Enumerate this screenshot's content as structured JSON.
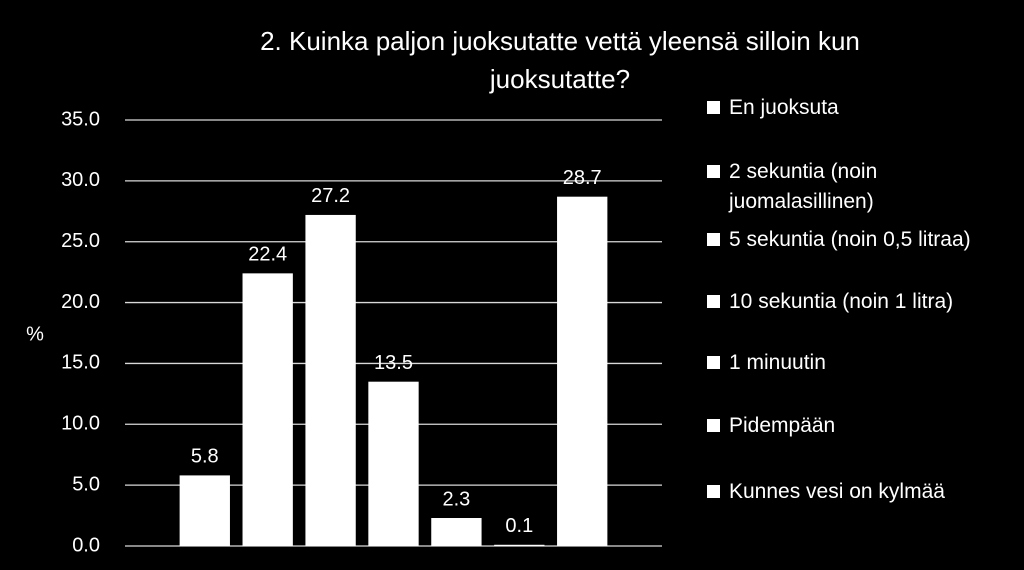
{
  "chart_data": {
    "type": "bar",
    "title": "2. Kuinka paljon juoksutatte vettä yleensä silloin kun juoksutatte?",
    "y_label": "%",
    "categories": [
      null
    ],
    "series": [
      {
        "name": "En juoksuta",
        "color": "#ffffff",
        "values": [
          5.8
        ]
      },
      {
        "name": "2 sekuntia (noin juomalasillinen)",
        "color": "#ffffff",
        "values": [
          22.4
        ]
      },
      {
        "name": "5 sekuntia (noin 0,5 litraa)",
        "color": "#ffffff",
        "values": [
          27.2
        ]
      },
      {
        "name": "10 sekuntia (noin 1 litra)",
        "color": "#ffffff",
        "values": [
          13.5
        ]
      },
      {
        "name": "1 minuutin",
        "color": "#ffffff",
        "values": [
          2.3
        ]
      },
      {
        "name": "Pidempään",
        "color": "#ffffff",
        "values": [
          0.1
        ]
      },
      {
        "name": "Kunnes vesi on kylmää",
        "color": "#ffffff",
        "values": [
          28.7
        ]
      }
    ],
    "ylim": [
      0,
      35
    ],
    "yticks": [
      {
        "value": 0,
        "label": "0.0"
      },
      {
        "value": 5,
        "label": "5.0"
      },
      {
        "value": 10,
        "label": "10.0"
      },
      {
        "value": 15,
        "label": "15.0"
      },
      {
        "value": 20,
        "label": "20.0"
      },
      {
        "value": 25,
        "label": "25.0"
      },
      {
        "value": 30,
        "label": "30.0"
      },
      {
        "value": 35,
        "label": "35.0"
      }
    ],
    "grid": true,
    "legend": "right",
    "data_labels": true
  }
}
